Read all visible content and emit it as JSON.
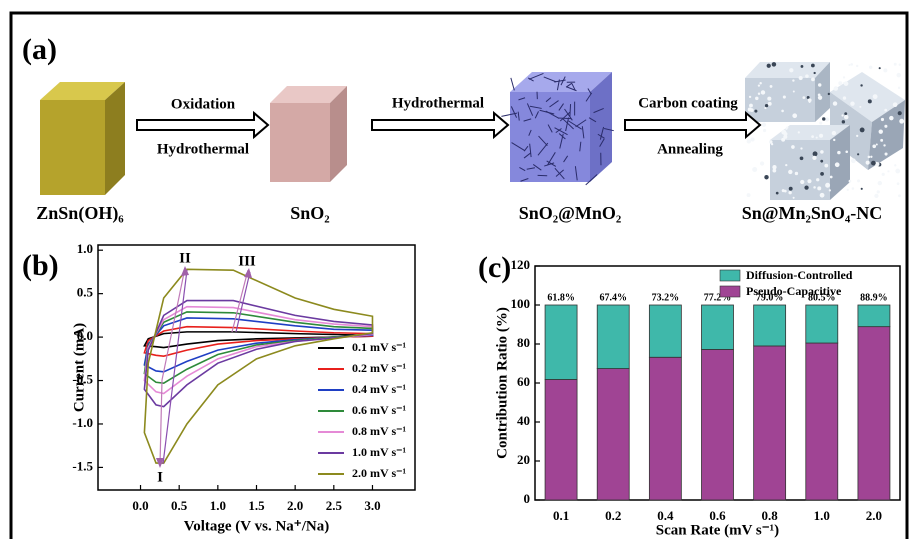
{
  "panel_a": {
    "label": "(a)",
    "materials": [
      "ZnSn(OH)₆",
      "SnO₂",
      "SnO₂@MnO₂",
      "Sn@Mn₂SnO₄-NC"
    ],
    "steps": [
      [
        "Oxidation",
        "Hydrothermal"
      ],
      [
        "Hydrothermal"
      ],
      [
        "Carbon coating",
        "Annealing"
      ]
    ]
  },
  "chart_data": [
    {
      "type": "line",
      "panel_label": "(b)",
      "x_label": "Voltage (V vs. Na⁺/Na)",
      "y_label": "Current (mA)",
      "x": [
        3.0,
        2.5,
        2.0,
        1.5,
        1.0,
        0.6,
        0.3,
        0.2,
        0.05,
        0.1,
        0.3,
        0.6,
        1.2,
        2.0,
        2.5,
        3.0
      ],
      "xlim": [
        -0.55,
        3.55
      ],
      "xticks": [
        {
          "value": 0,
          "label": "0.0"
        },
        0.5,
        {
          "value": 1,
          "label": "1.0"
        },
        1.5,
        {
          "value": 2,
          "label": "2.0"
        },
        2.5,
        {
          "value": 3,
          "label": "3.0"
        }
      ],
      "ylim": [
        -1.76,
        1.06
      ],
      "yticks": [
        -1.5,
        {
          "value": -1,
          "label": "-1.0"
        },
        -0.5,
        {
          "value": 0,
          "label": "0.0"
        },
        0.5,
        {
          "value": 1,
          "label": "1.0"
        }
      ],
      "closed": true,
      "legend": "lower right",
      "annotations": [
        "I",
        "II",
        "III"
      ],
      "series": [
        {
          "name": "0.1 mV s⁻¹",
          "color": "#000000",
          "values": [
            0.01,
            0,
            -0.01,
            -0.02,
            -0.04,
            -0.08,
            -0.12,
            -0.11,
            -0.1,
            -0.02,
            0.04,
            0.06,
            0.06,
            0.04,
            0.03,
            0.02
          ]
        },
        {
          "name": "0.2 mV s⁻¹",
          "color": "#e8201c",
          "values": [
            0.01,
            0,
            -0.02,
            -0.04,
            -0.08,
            -0.15,
            -0.22,
            -0.21,
            -0.18,
            -0.04,
            0.07,
            0.12,
            0.11,
            0.07,
            0.05,
            0.04
          ]
        },
        {
          "name": "0.4 mV s⁻¹",
          "color": "#1f3fc4",
          "values": [
            0.02,
            0,
            -0.03,
            -0.07,
            -0.15,
            -0.28,
            -0.4,
            -0.39,
            -0.32,
            -0.08,
            0.13,
            0.22,
            0.21,
            0.13,
            0.09,
            0.08
          ]
        },
        {
          "name": "0.6 mV s⁻¹",
          "color": "#2e8a3a",
          "values": [
            0.03,
            0,
            -0.04,
            -0.09,
            -0.2,
            -0.37,
            -0.53,
            -0.52,
            -0.42,
            -0.1,
            0.17,
            0.29,
            0.28,
            0.17,
            0.12,
            0.1
          ]
        },
        {
          "name": "0.8 mV s⁻¹",
          "color": "#e58ad6",
          "values": [
            0.03,
            -0.01,
            -0.05,
            -0.11,
            -0.25,
            -0.45,
            -0.65,
            -0.63,
            -0.5,
            -0.12,
            0.2,
            0.35,
            0.34,
            0.2,
            0.15,
            0.12
          ]
        },
        {
          "name": "1.0 mV s⁻¹",
          "color": "#6b3aa0",
          "values": [
            0.04,
            -0.01,
            -0.05,
            -0.14,
            -0.3,
            -0.55,
            -0.8,
            -0.78,
            -0.6,
            -0.15,
            0.25,
            0.42,
            0.42,
            0.25,
            0.18,
            0.14
          ]
        },
        {
          "name": "2.0 mV s⁻¹",
          "color": "#8c8a1e",
          "values": [
            0.05,
            -0.02,
            -0.1,
            -0.25,
            -0.55,
            -1.0,
            -1.45,
            -1.45,
            -1.1,
            -0.3,
            0.45,
            0.78,
            0.77,
            0.45,
            0.32,
            0.24
          ]
        }
      ]
    },
    {
      "type": "bar",
      "panel_label": "(c)",
      "stacked": true,
      "x_label": "Scan Rate (mV s⁻¹)",
      "y_label": "Contribution Ratio (%)",
      "categories": [
        "0.1",
        "0.2",
        "0.4",
        "0.6",
        "0.8",
        "1.0",
        "2.0"
      ],
      "ylim": [
        0,
        120
      ],
      "yticks": [
        0,
        20,
        40,
        60,
        80,
        100,
        120
      ],
      "legend": "upper right",
      "series": [
        {
          "name": "Pseudo-Capacitive",
          "color": "#a04494",
          "values": [
            61.8,
            67.4,
            73.2,
            77.2,
            79.0,
            80.5,
            88.9
          ],
          "value_labels": [
            "61.8%",
            "67.4%",
            "73.2%",
            "77.2%",
            "79.0%",
            "80.5%",
            "88.9%"
          ]
        },
        {
          "name": "Diffusion-Controlled",
          "color": "#3fb8aa",
          "values": [
            38.2,
            32.6,
            26.8,
            22.8,
            21.0,
            19.5,
            11.1
          ]
        }
      ]
    }
  ]
}
